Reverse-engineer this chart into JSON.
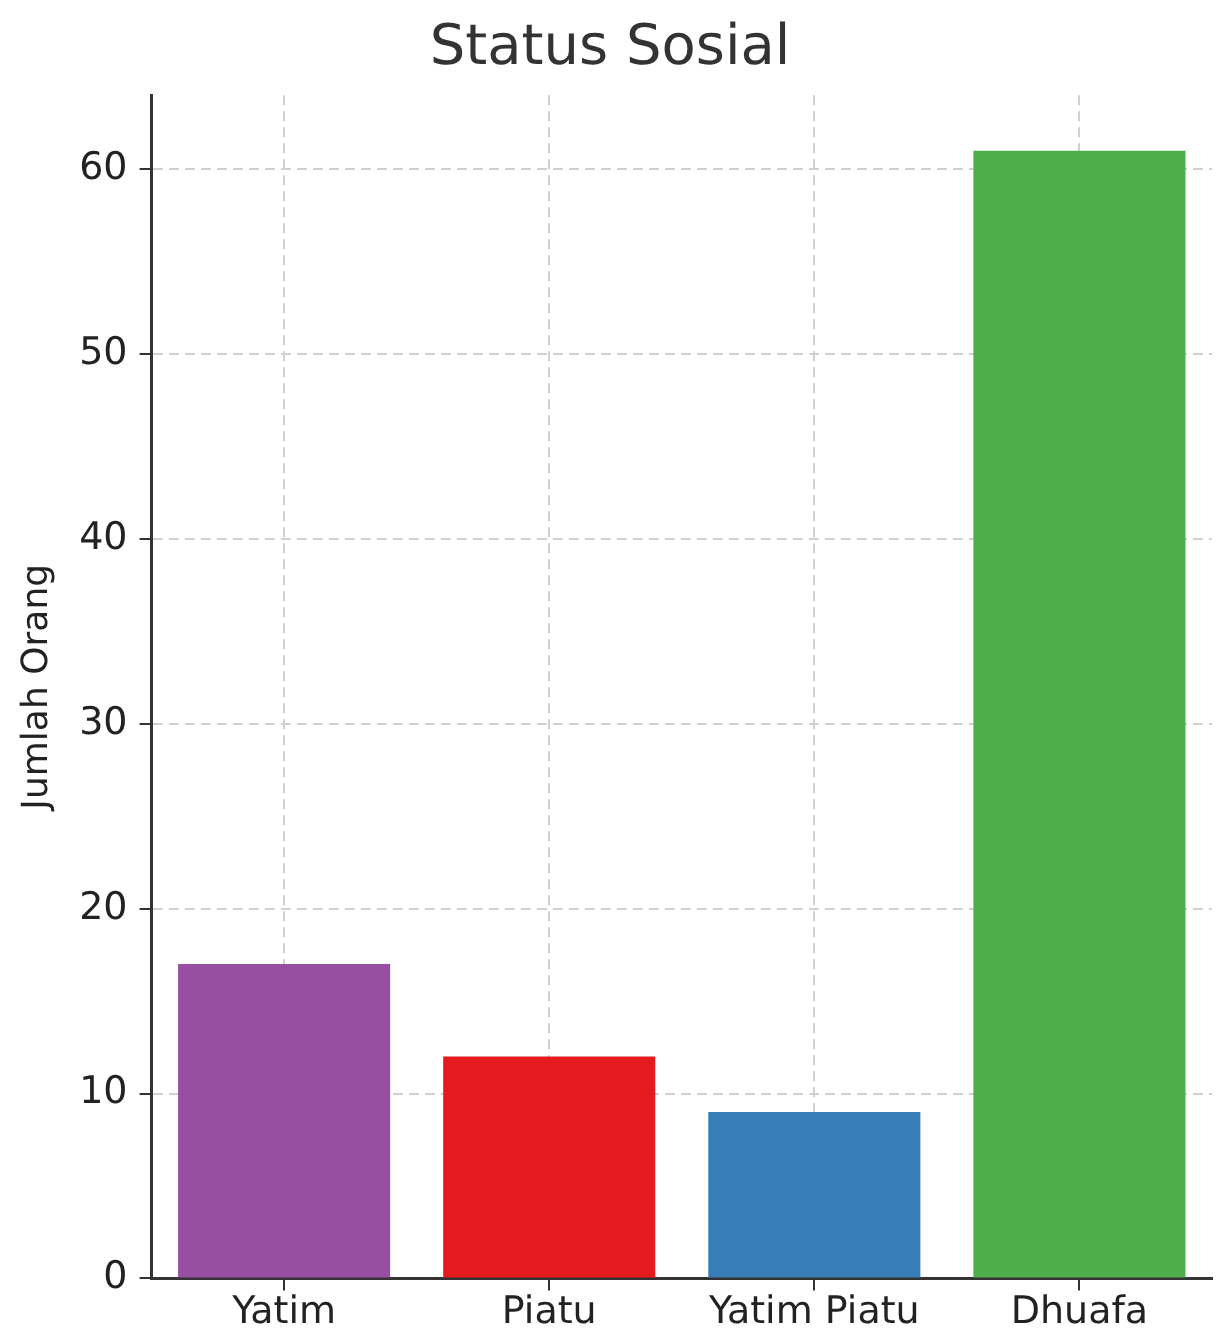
{
  "chart_data": {
    "type": "bar",
    "title": "Status Sosial",
    "ylabel": "Jumlah Orang",
    "categories": [
      "Yatim",
      "Piatu",
      "Yatim Piatu",
      "Dhuafa"
    ],
    "values": [
      17,
      12,
      9,
      61
    ],
    "colors": [
      "#984ea3",
      "#e41a1c",
      "#377eb8",
      "#4daf4a"
    ],
    "ylim": [
      0,
      64
    ],
    "yticks": [
      0,
      10,
      20,
      30,
      40,
      50,
      60
    ],
    "grid": true
  }
}
